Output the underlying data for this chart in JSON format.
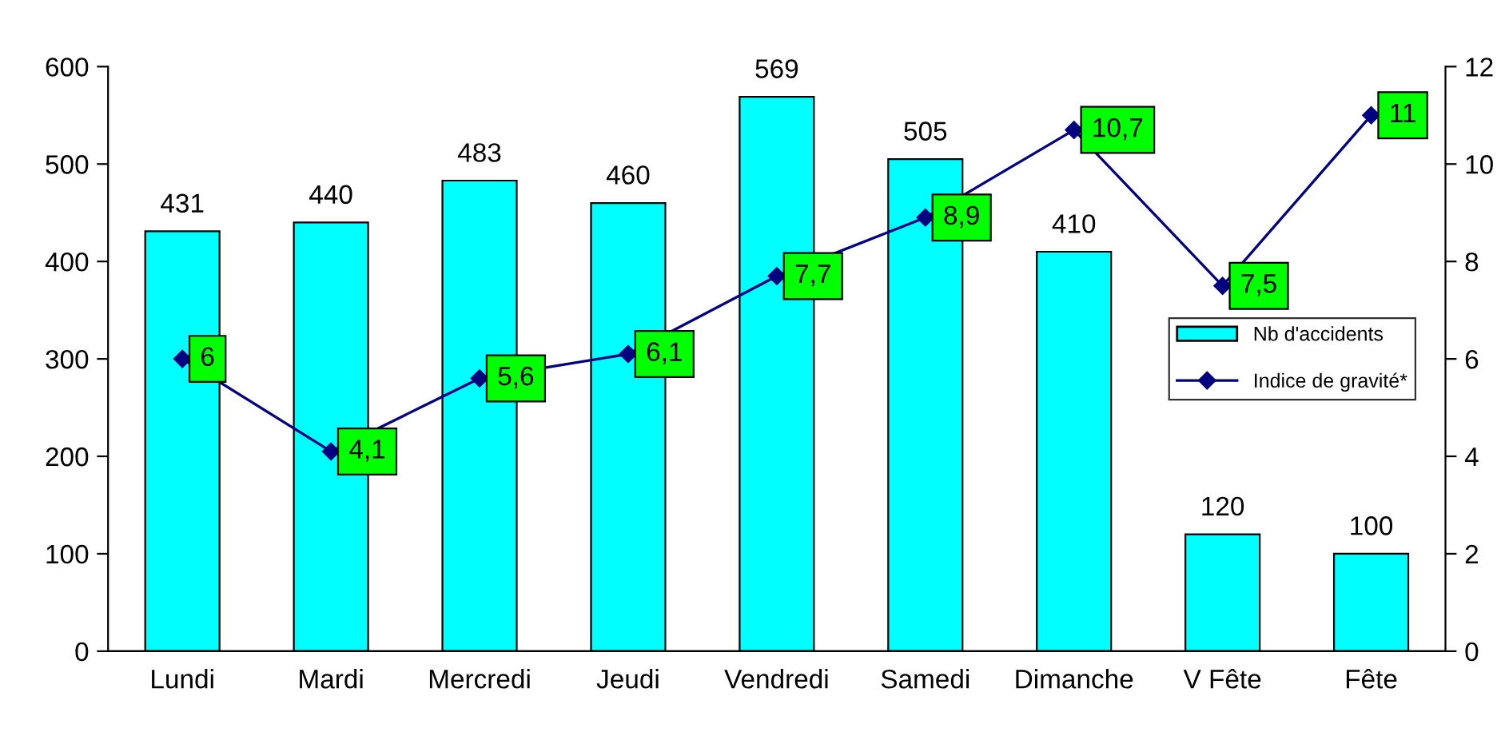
{
  "chart_data": {
    "type": "bar",
    "categories": [
      "Lundi",
      "Mardi",
      "Mercredi",
      "Jeudi",
      "Vendredi",
      "Samedi",
      "Dimanche",
      "V Fête",
      "Fête"
    ],
    "series": [
      {
        "name": "Nb d'accidents",
        "color": "#00ffff",
        "values": [
          431,
          440,
          483,
          460,
          569,
          505,
          410,
          120,
          100
        ],
        "value_labels": [
          "431",
          "440",
          "483",
          "460",
          "569",
          "505",
          "410",
          "120",
          "100"
        ]
      },
      {
        "name": "Indice de gravité*",
        "type": "line",
        "axis": "y2",
        "color": "#000080",
        "values": [
          6,
          4.1,
          5.6,
          6.1,
          7.7,
          8.9,
          10.7,
          7.5,
          11
        ],
        "value_labels": [
          "6",
          "4,1",
          "5,6",
          "6,1",
          "7,7",
          "8,9",
          "10,7",
          "7,5",
          "11"
        ]
      }
    ],
    "ylim": [
      0,
      600
    ],
    "yticks": [
      0,
      100,
      200,
      300,
      400,
      500,
      600
    ],
    "y2lim": [
      0,
      12
    ],
    "y2ticks": [
      0,
      2,
      4,
      6,
      8,
      10,
      12
    ],
    "grid": false,
    "legend": "right",
    "marker": "diamond",
    "line_style": "solid"
  }
}
